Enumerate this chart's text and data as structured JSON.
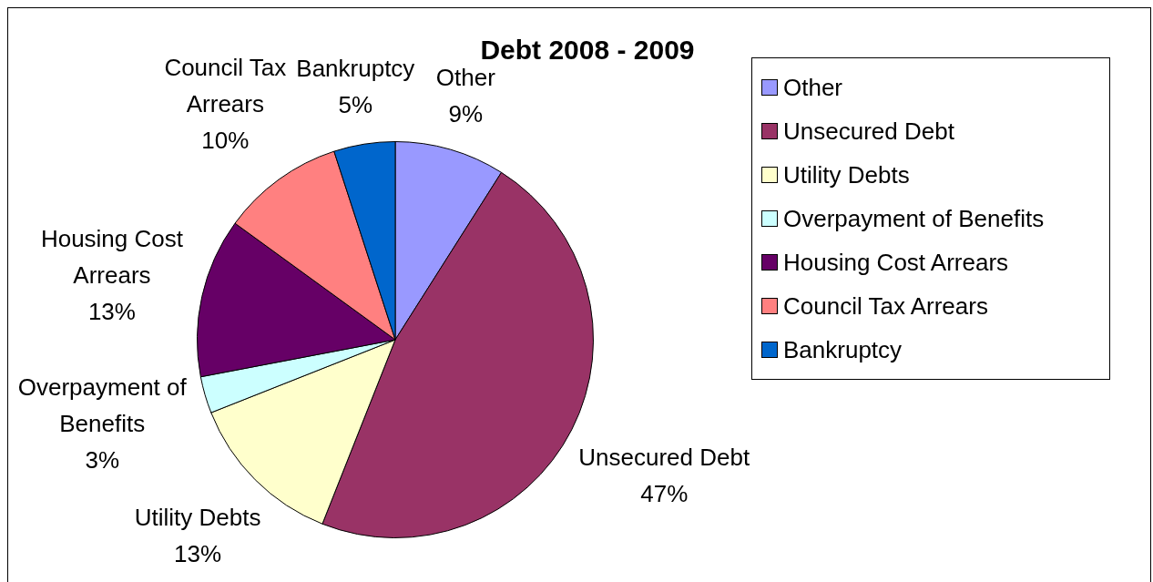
{
  "chart_data": {
    "type": "pie",
    "title": "Debt 2008 - 2009",
    "categories": [
      "Other",
      "Unsecured Debt",
      "Utility Debts",
      "Overpayment of Benefits",
      "Housing Cost Arrears",
      "Council Tax Arrears",
      "Bankruptcy"
    ],
    "values": [
      9,
      47,
      13,
      3,
      13,
      10,
      5
    ],
    "value_labels": [
      "9%",
      "47%",
      "13%",
      "3%",
      "13%",
      "10%",
      "5%"
    ],
    "colors": [
      "#9999ff",
      "#993366",
      "#ffffcc",
      "#ccffff",
      "#660066",
      "#ff8080",
      "#0066cc"
    ],
    "legend": "right"
  }
}
